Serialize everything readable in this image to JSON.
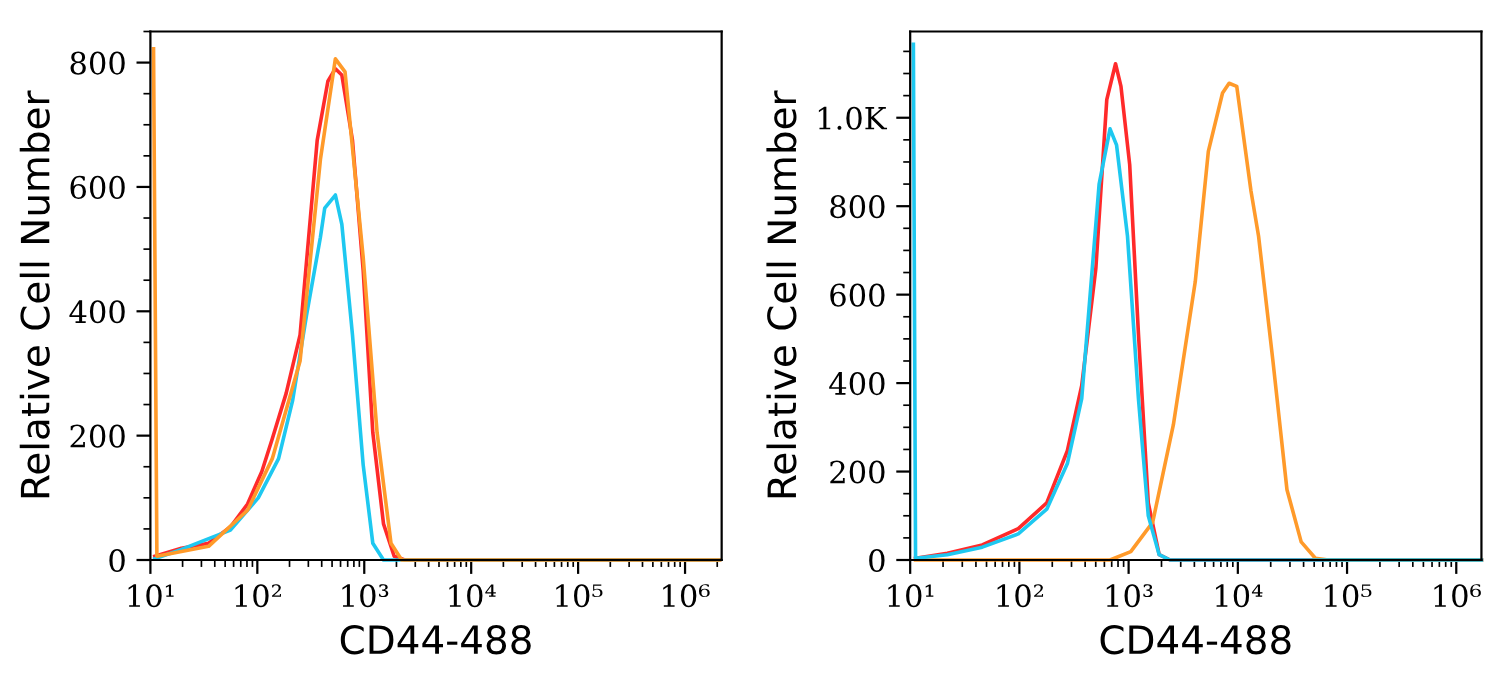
{
  "chart_data": [
    {
      "type": "line",
      "xlabel": "CD44-488",
      "ylabel": "Relative Cell Number",
      "log": "x",
      "grid": false,
      "legend": false,
      "marker": "none",
      "line_style": "solid",
      "xlim": [
        10,
        2200000
      ],
      "xticks": [
        {
          "value": 10,
          "label": "10¹"
        },
        {
          "value": 100,
          "label": "10²"
        },
        {
          "value": 1000,
          "label": "10³"
        },
        {
          "value": 10000,
          "label": "10⁴"
        },
        {
          "value": 100000,
          "label": "10⁵"
        },
        {
          "value": 1000000,
          "label": "10⁶"
        }
      ],
      "ylim": [
        0,
        850
      ],
      "yticks": [
        0,
        200,
        400,
        600,
        800
      ],
      "series": [
        {
          "color": "#ff2a2a",
          "x": [
            11,
            19.5,
            35,
            56,
            81,
            110,
            138,
            186,
            251,
            363,
            457,
            537,
            617,
            776,
            977,
            1202,
            1514,
            1905,
            2399,
            2100000
          ],
          "values": [
            6,
            19,
            27,
            53,
            90,
            142,
            195,
            268,
            362,
            675,
            770,
            790,
            780,
            675,
            466,
            205,
            58,
            6,
            0,
            0
          ]
        },
        {
          "color": "#1ec8f0",
          "x": [
            11,
            19.5,
            56,
            102,
            158,
            214,
            288,
            389,
            427,
            537,
            617,
            776,
            977,
            1202,
            1514,
            2100000
          ],
          "values": [
            2,
            17,
            48,
            100,
            163,
            257,
            393,
            519,
            566,
            587,
            540,
            362,
            153,
            27,
            0,
            0
          ]
        },
        {
          "color": "#ff9a2a",
          "x": [
            10.7,
            11.5,
            35,
            81,
            138,
            251,
            389,
            537,
            661,
            977,
            1318,
            1778,
            2239,
            2100000
          ],
          "values": [
            822,
            6,
            22,
            80,
            163,
            320,
            644,
            806,
            785,
            487,
            205,
            27,
            0,
            0
          ]
        }
      ]
    },
    {
      "type": "line",
      "xlabel": "CD44-488",
      "ylabel": "Relative Cell Number",
      "log": "x",
      "grid": false,
      "legend": false,
      "marker": "none",
      "line_style": "solid",
      "xlim": [
        10,
        1700000
      ],
      "xticks": [
        {
          "value": 10,
          "label": "10¹"
        },
        {
          "value": 100,
          "label": "10²"
        },
        {
          "value": 1000,
          "label": "10³"
        },
        {
          "value": 10000,
          "label": "10⁴"
        },
        {
          "value": 100000,
          "label": "10⁵"
        },
        {
          "value": 1000000,
          "label": "10⁶"
        }
      ],
      "ylim": [
        0,
        1195
      ],
      "yticks": [
        0,
        200,
        400,
        600,
        800,
        {
          "value": 1000,
          "label": "1.0K"
        }
      ],
      "series": [
        {
          "color": "#ff2a2a",
          "x": [
            11.2,
            21.9,
            45.7,
            97.7,
            178,
            275,
            372,
            501,
            631,
            759,
            851,
            1023,
            1230,
            1514,
            1905,
            2399,
            1700000
          ],
          "values": [
            4,
            15,
            34,
            71,
            129,
            247,
            394,
            659,
            1041,
            1122,
            1071,
            894,
            512,
            129,
            12,
            0,
            0
          ]
        },
        {
          "color": "#ff9a2a",
          "x": [
            11.2,
            676,
            1047,
            1660,
            2570,
            4074,
            5370,
            7244,
            8318,
            9772,
            13183,
            15488,
            20893,
            28184,
            38019,
            51286,
            67608,
            1700000
          ],
          "values": [
            0,
            0,
            19,
            85,
            306,
            629,
            924,
            1056,
            1078,
            1071,
            835,
            732,
            453,
            159,
            41,
            4,
            0,
            0
          ]
        },
        {
          "color": "#1ec8f0",
          "x": [
            10.7,
            11.2,
            21.9,
            45.7,
            97.7,
            178,
            275,
            372,
            537,
            676,
            776,
            977,
            1230,
            1514,
            1905,
            2399,
            1700000
          ],
          "values": [
            1166,
            4,
            12,
            29,
            59,
            115,
            218,
            365,
            850,
            975,
            938,
            732,
            365,
            100,
            12,
            0,
            0
          ]
        }
      ]
    }
  ]
}
